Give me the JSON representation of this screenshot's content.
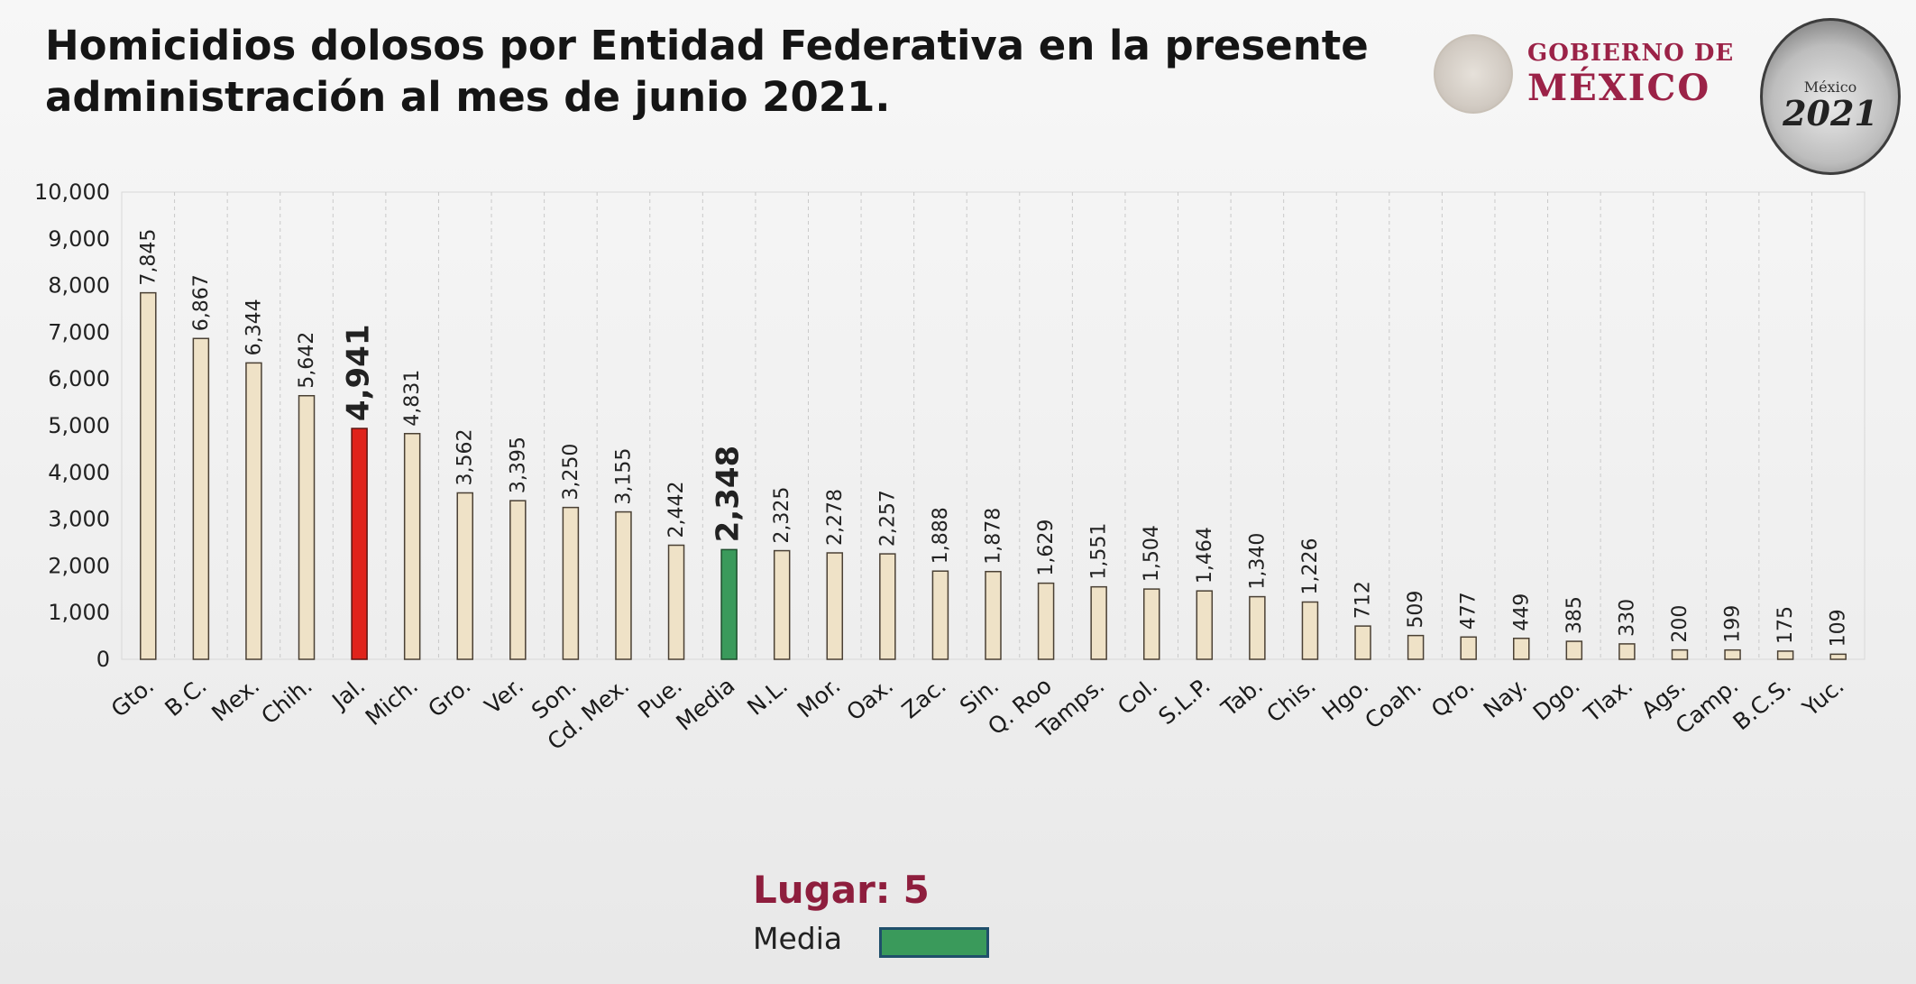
{
  "title_line1": "Homicidios dolosos por Entidad Federativa en la presente",
  "title_line2": "administración al mes de junio 2021.",
  "logo": {
    "line1": "GOBIERNO DE",
    "line2": "MÉXICO"
  },
  "badge": {
    "line1": "México",
    "line2": "2021"
  },
  "footer": {
    "lugar_label": "Lugar:",
    "lugar_value": "5",
    "legend_label": "Media"
  },
  "colors": {
    "default_bar": "#efe2c7",
    "default_border": "#4a4034",
    "highlight_bar": "#e0231b",
    "media_bar": "#3a9a5b"
  },
  "chart_data": {
    "type": "bar",
    "categories": [
      "Gto.",
      "B.C.",
      "Mex.",
      "Chih.",
      "Jal.",
      "Mich.",
      "Gro.",
      "Ver.",
      "Son.",
      "Cd. Mex.",
      "Pue.",
      "Media",
      "N.L.",
      "Mor.",
      "Oax.",
      "Zac.",
      "Sin.",
      "Q. Roo",
      "Tamps.",
      "Col.",
      "S.L.P.",
      "Tab.",
      "Chis.",
      "Hgo.",
      "Coah.",
      "Qro.",
      "Nay.",
      "Dgo.",
      "Tlax.",
      "Ags.",
      "Camp.",
      "B.C.S.",
      "Yuc."
    ],
    "values": [
      7845,
      6867,
      6344,
      5642,
      4941,
      4831,
      3562,
      3395,
      3250,
      3155,
      2442,
      2348,
      2325,
      2278,
      2257,
      1888,
      1878,
      1629,
      1551,
      1504,
      1464,
      1340,
      1226,
      712,
      509,
      477,
      449,
      385,
      330,
      200,
      199,
      175,
      109
    ],
    "value_labels": [
      "7,845",
      "6,867",
      "6,344",
      "5,642",
      "4,941",
      "4,831",
      "3,562",
      "3,395",
      "3,250",
      "3,155",
      "2,442",
      "2,348",
      "2,325",
      "2,278",
      "2,257",
      "1,888",
      "1,878",
      "1,629",
      "1,551",
      "1,504",
      "1,464",
      "1,340",
      "1,226",
      "712",
      "509",
      "477",
      "449",
      "385",
      "330",
      "200",
      "199",
      "175",
      "109"
    ],
    "highlight": "Jal.",
    "media": "Media",
    "ylim": [
      0,
      10000
    ],
    "yticks": [
      "0",
      "1,000",
      "2,000",
      "3,000",
      "4,000",
      "5,000",
      "6,000",
      "7,000",
      "8,000",
      "9,000",
      "10,000"
    ],
    "grid": "vertical-dashed",
    "legend": "bottom-center"
  }
}
